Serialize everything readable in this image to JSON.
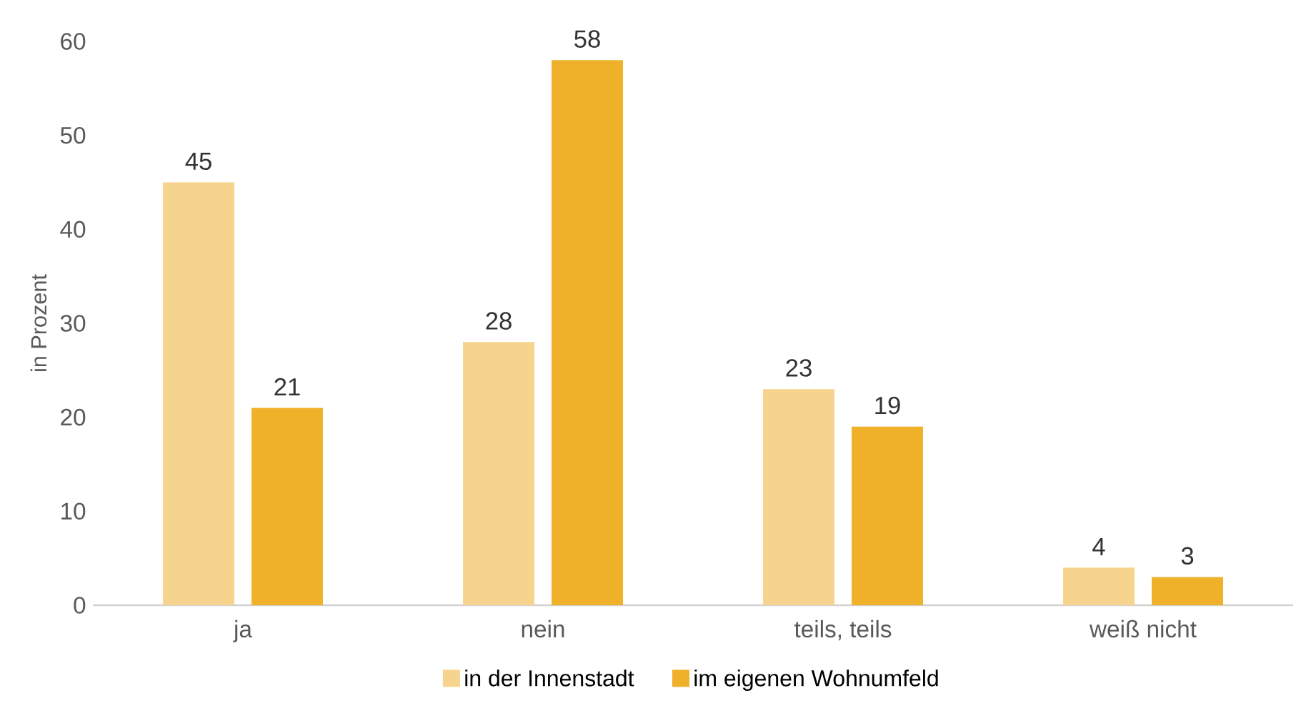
{
  "chart_data": {
    "type": "bar",
    "ylabel": "in Prozent",
    "categories": [
      "ja",
      "nein",
      "teils, teils",
      "weiß nicht"
    ],
    "series": [
      {
        "name": "in der Innenstadt",
        "color": "#f7d48e",
        "values": [
          45,
          28,
          23,
          4
        ]
      },
      {
        "name": "im eigenen Wohnumfeld",
        "color": "#efb12a",
        "values": [
          21,
          58,
          19,
          3
        ]
      }
    ],
    "ylim": [
      0,
      60
    ],
    "yticks": [
      0,
      10,
      20,
      30,
      40,
      50,
      60
    ],
    "data_labels": true,
    "legend": "bottom"
  }
}
